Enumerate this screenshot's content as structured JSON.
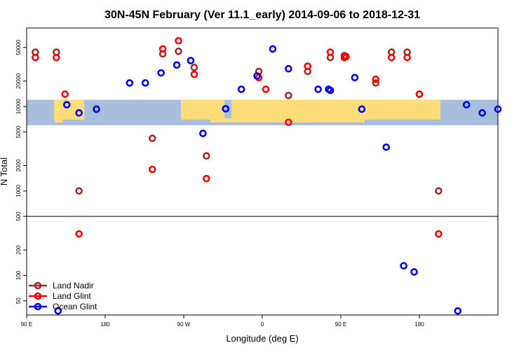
{
  "chart_data": {
    "type": "scatter",
    "title": "30N-45N February (Ver 11.1_early)   2014-09-06 to 2018-12-31",
    "xlabel": "Longitude (deg E)",
    "ylabel": "N Total",
    "xlim": [
      -90,
      180
    ],
    "ylim": [
      34,
      85000
    ],
    "y_scale": "log",
    "x_ticks": [
      {
        "value": -90,
        "label": "90 E"
      },
      {
        "value": -45,
        "label": "180"
      },
      {
        "value": 0,
        "label": "90 W"
      },
      {
        "value": 45,
        "label": "0"
      },
      {
        "value": 90,
        "label": "90 E"
      },
      {
        "value": 135,
        "label": "180"
      }
    ],
    "y_ticks": [
      50,
      100,
      200,
      500,
      1000,
      2000,
      5000,
      10000,
      20000,
      50000
    ],
    "reference_line_y": 500,
    "map_band": {
      "y_from": 6000,
      "y_to": 12000,
      "ocean_color": "#a7bedc",
      "land_color": "#fddc7a"
    },
    "legend_position": "bottom-left",
    "series": [
      {
        "name": "Land Nadir",
        "color": "#a52a2a",
        "points": [
          [
            -85,
            44000
          ],
          [
            -73,
            44000
          ],
          [
            -60,
            1000
          ],
          [
            -18,
            4200
          ],
          [
            -12,
            42000
          ],
          [
            -3,
            45000
          ],
          [
            6,
            29000
          ],
          [
            13,
            2600
          ],
          [
            43,
            26000
          ],
          [
            60,
            13500
          ],
          [
            71,
            26000
          ],
          [
            84,
            38000
          ],
          [
            92,
            40000
          ],
          [
            110,
            19000
          ],
          [
            119,
            44000
          ],
          [
            128,
            44000
          ],
          [
            135,
            14000
          ],
          [
            146,
            1000
          ]
        ]
      },
      {
        "name": "Land Glint",
        "color": "#ff0000",
        "points": [
          [
            -85,
            38000
          ],
          [
            -73,
            38000
          ],
          [
            -68,
            14000
          ],
          [
            -60,
            310
          ],
          [
            -18,
            1800
          ],
          [
            -12,
            48000
          ],
          [
            -3,
            60000
          ],
          [
            6,
            24000
          ],
          [
            13,
            1400
          ],
          [
            43,
            22000
          ],
          [
            47,
            16000
          ],
          [
            60,
            6500
          ],
          [
            71,
            30000
          ],
          [
            84,
            44000
          ],
          [
            92,
            38000
          ],
          [
            93,
            39000
          ],
          [
            110,
            21000
          ],
          [
            119,
            38000
          ],
          [
            128,
            38000
          ],
          [
            135,
            14000
          ],
          [
            146,
            310
          ]
        ]
      },
      {
        "name": "Ocean Glint",
        "color": "#0000ee",
        "points": [
          [
            -72,
            38
          ],
          [
            -67,
            10500
          ],
          [
            -60,
            8400
          ],
          [
            -50,
            9300
          ],
          [
            -31,
            19000
          ],
          [
            -22,
            19000
          ],
          [
            -13,
            25000
          ],
          [
            -4,
            31000
          ],
          [
            4,
            35000
          ],
          [
            11,
            4800
          ],
          [
            24,
            9400
          ],
          [
            33,
            16000
          ],
          [
            42,
            23000
          ],
          [
            51,
            48000
          ],
          [
            60,
            28000
          ],
          [
            77,
            16000
          ],
          [
            83,
            16000
          ],
          [
            84,
            15500
          ],
          [
            98,
            22000
          ],
          [
            102,
            9300
          ],
          [
            116,
            3300
          ],
          [
            126,
            130
          ],
          [
            132,
            110
          ],
          [
            157,
            38
          ],
          [
            162,
            10500
          ],
          [
            171,
            8400
          ],
          [
            180,
            9300
          ],
          [
            190,
            19000
          ]
        ]
      }
    ]
  }
}
